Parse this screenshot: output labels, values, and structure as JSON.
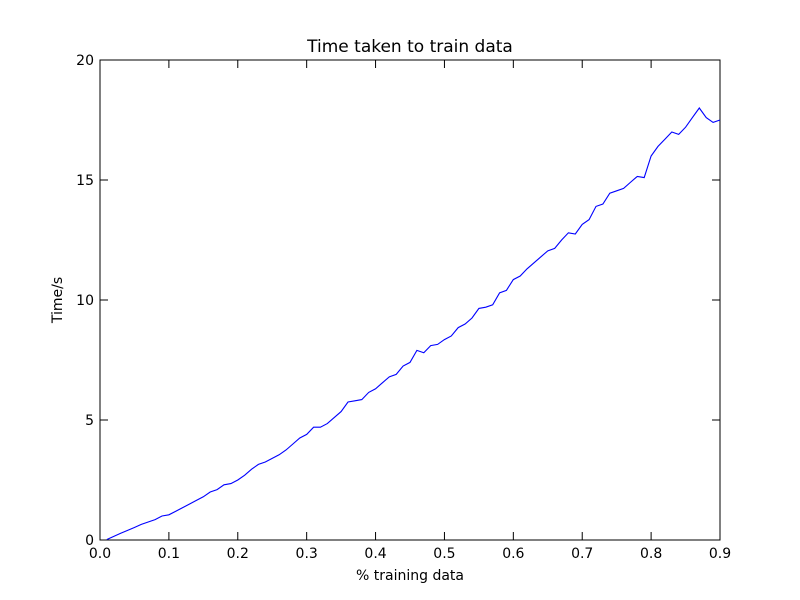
{
  "chart_data": {
    "type": "line",
    "title": "Time taken to train data",
    "xlabel": "% training data",
    "ylabel": "Time/s",
    "xlim": [
      0,
      0.9
    ],
    "ylim": [
      0,
      20
    ],
    "grid": false,
    "line_color": "#0000ff",
    "x_ticks": [
      0.0,
      0.1,
      0.2,
      0.3,
      0.4,
      0.5,
      0.6,
      0.7,
      0.8,
      0.9
    ],
    "x_tick_labels": [
      "0.0",
      "0.1",
      "0.2",
      "0.3",
      "0.4",
      "0.5",
      "0.6",
      "0.7",
      "0.8",
      "0.9"
    ],
    "y_ticks": [
      0,
      5,
      10,
      15,
      20
    ],
    "y_tick_labels": [
      "0",
      "5",
      "10",
      "15",
      "20"
    ],
    "series": [
      {
        "x": [
          0.01,
          0.02,
          0.03,
          0.04,
          0.05,
          0.06,
          0.07,
          0.08,
          0.09,
          0.1,
          0.11,
          0.12,
          0.13,
          0.14,
          0.15,
          0.16,
          0.17,
          0.18,
          0.19,
          0.2,
          0.21,
          0.22,
          0.23,
          0.24,
          0.25,
          0.26,
          0.27,
          0.28,
          0.29,
          0.3,
          0.31,
          0.32,
          0.33,
          0.34,
          0.35,
          0.36,
          0.37,
          0.38,
          0.39,
          0.4,
          0.41,
          0.42,
          0.43,
          0.44,
          0.45,
          0.46,
          0.47,
          0.48,
          0.49,
          0.5,
          0.51,
          0.52,
          0.53,
          0.54,
          0.55,
          0.56,
          0.57,
          0.58,
          0.59,
          0.6,
          0.61,
          0.62,
          0.63,
          0.64,
          0.65,
          0.66,
          0.67,
          0.68,
          0.69,
          0.7,
          0.71,
          0.72,
          0.73,
          0.74,
          0.75,
          0.76,
          0.77,
          0.78,
          0.79,
          0.8,
          0.81,
          0.82,
          0.83,
          0.84,
          0.85,
          0.86,
          0.87,
          0.88,
          0.89,
          0.9
        ],
        "y": [
          0.02,
          0.15,
          0.28,
          0.4,
          0.52,
          0.65,
          0.75,
          0.85,
          1.0,
          1.05,
          1.2,
          1.35,
          1.5,
          1.65,
          1.8,
          2.0,
          2.1,
          2.3,
          2.35,
          2.5,
          2.7,
          2.95,
          3.15,
          3.25,
          3.4,
          3.55,
          3.75,
          4.0,
          4.25,
          4.4,
          4.7,
          4.7,
          4.85,
          5.1,
          5.35,
          5.75,
          5.8,
          5.85,
          6.15,
          6.3,
          6.55,
          6.8,
          6.9,
          7.25,
          7.4,
          7.9,
          7.8,
          8.1,
          8.15,
          8.35,
          8.5,
          8.85,
          9.0,
          9.25,
          9.65,
          9.7,
          9.8,
          10.3,
          10.4,
          10.85,
          11.0,
          11.3,
          11.55,
          11.8,
          12.05,
          12.15,
          12.5,
          12.8,
          12.75,
          13.15,
          13.35,
          13.9,
          14.0,
          14.45,
          14.55,
          14.65,
          14.9,
          15.15,
          15.1,
          16.0,
          16.4,
          16.7,
          17.0,
          16.9,
          17.2,
          17.6,
          18.0,
          17.6,
          17.4,
          17.5
        ]
      }
    ]
  }
}
